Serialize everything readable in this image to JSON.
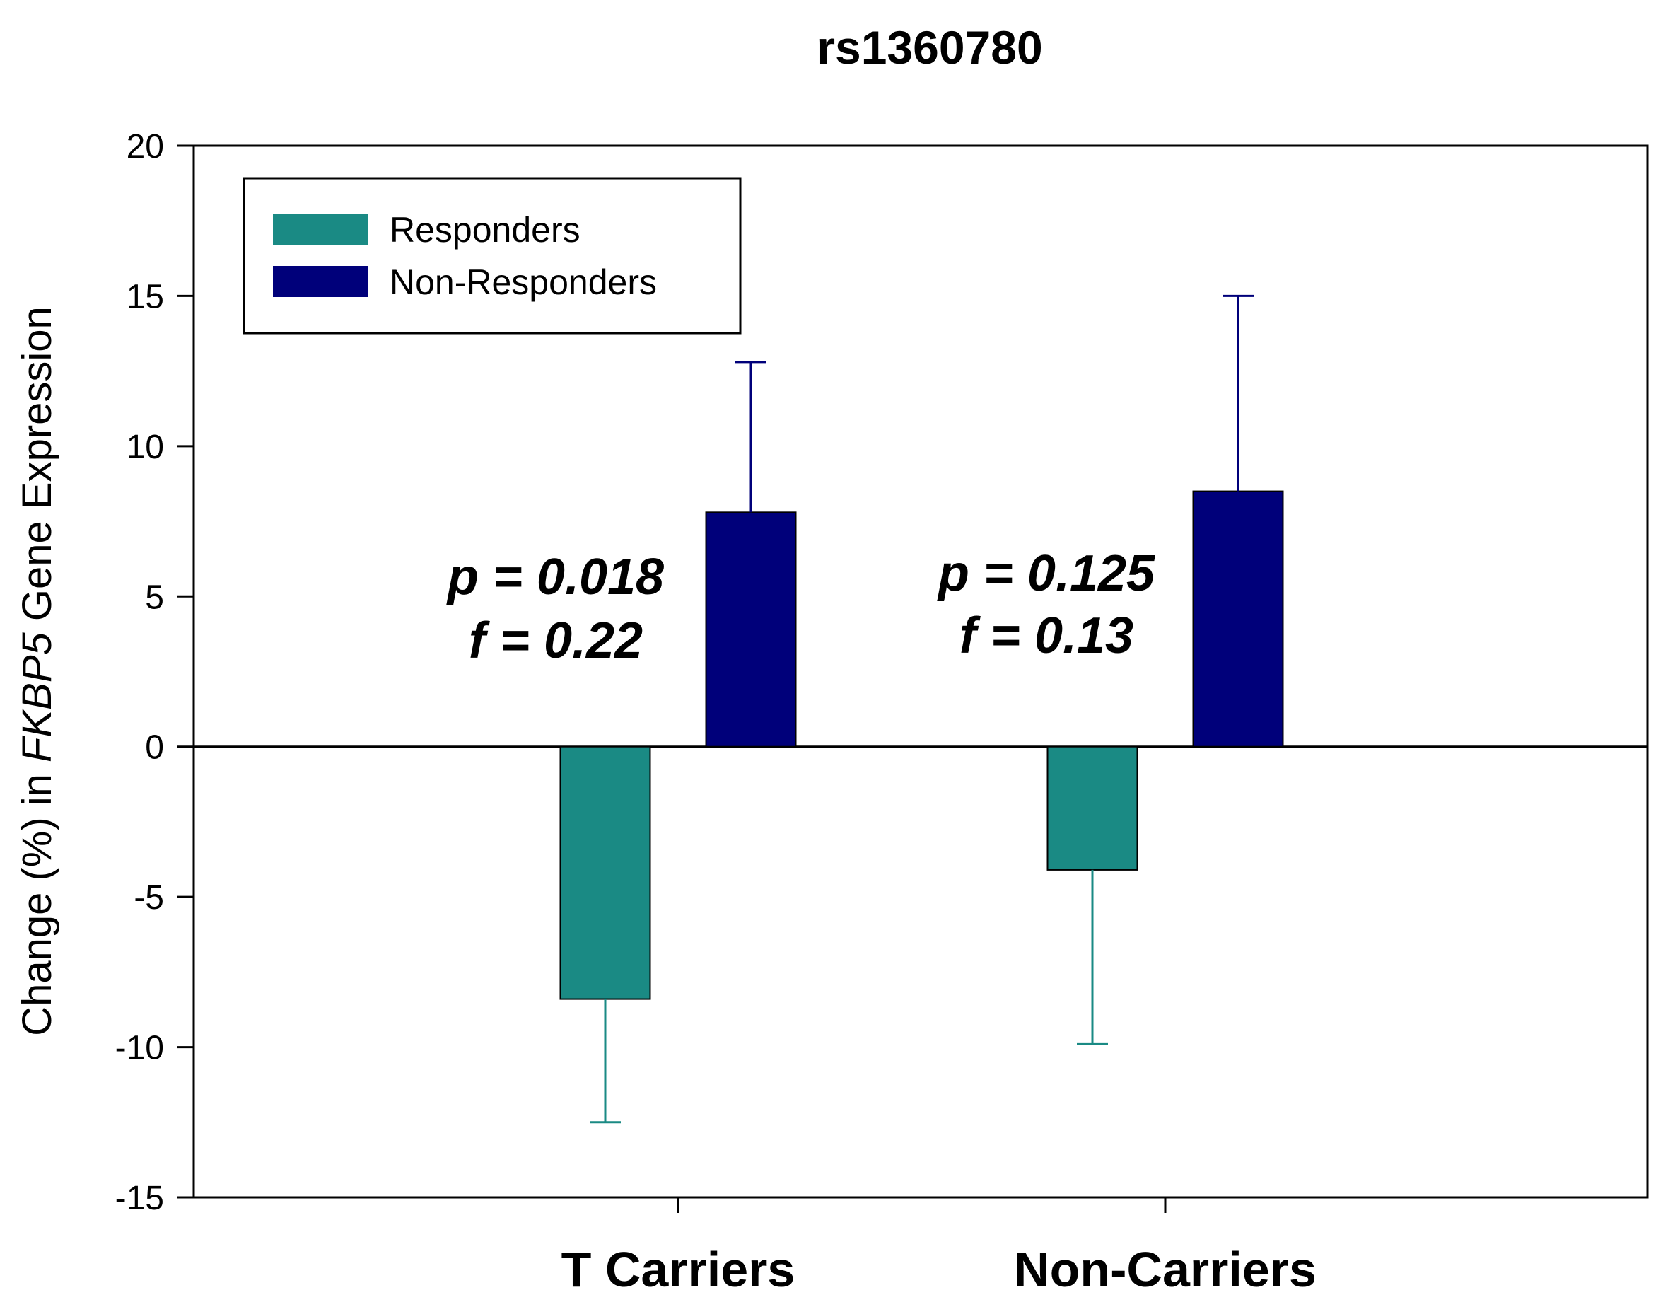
{
  "chart_data": {
    "type": "bar",
    "title": "rs1360780",
    "xlabel": "",
    "ylabel": {
      "prefix": "Change (%) in ",
      "italic": "FKBP5",
      "suffix": " Gene Expression"
    },
    "ylim": [
      -15,
      20
    ],
    "yticks": [
      20,
      15,
      10,
      5,
      0,
      -5,
      -10,
      -15
    ],
    "grid": false,
    "legend_position": "top-left",
    "categories": [
      "T Carriers",
      "Non-Carriers"
    ],
    "series": [
      {
        "name": "Responders",
        "color": "#1a8a84",
        "values": [
          -8.4,
          -4.1
        ],
        "error": [
          4.1,
          5.8
        ]
      },
      {
        "name": "Non-Responders",
        "color": "#00007a",
        "values": [
          7.8,
          8.5
        ],
        "error": [
          5.0,
          6.5
        ]
      }
    ],
    "annotations": [
      {
        "category": "T Carriers",
        "lines": [
          "p = 0.018",
          "f = 0.22"
        ]
      },
      {
        "category": "Non-Carriers",
        "lines": [
          "p = 0.125",
          "f = 0.13"
        ]
      }
    ]
  }
}
